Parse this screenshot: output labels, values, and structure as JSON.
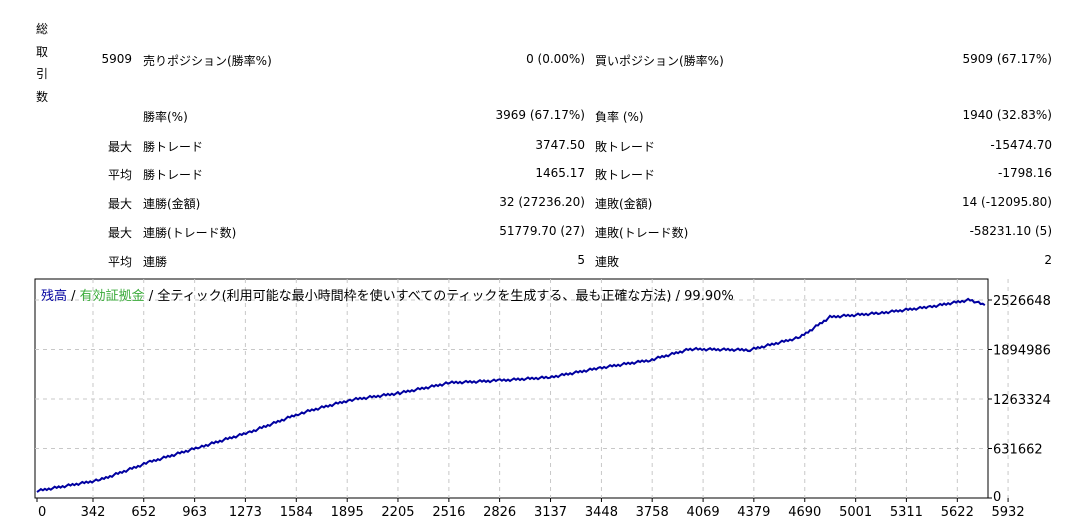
{
  "stats": {
    "total_trades_label": "総取引数",
    "rows": [
      {
        "prefix": "5909",
        "label": "売りポジション(勝率%)",
        "value": "0 (0.00%)",
        "label2": "買いポジション(勝率%)",
        "value2": "5909 (67.17%)"
      },
      {
        "prefix": "",
        "label": "勝率(%)",
        "value": "3969 (67.17%)",
        "label2": "負率 (%)",
        "value2": "1940 (32.83%)"
      },
      {
        "prefix": "最大",
        "label": "勝トレード",
        "value": "3747.50",
        "label2": "敗トレード",
        "value2": "-15474.70"
      },
      {
        "prefix": "平均",
        "label": "勝トレード",
        "value": "1465.17",
        "label2": "敗トレード",
        "value2": "-1798.16"
      },
      {
        "prefix": "最大",
        "label": "連勝(金額)",
        "value": "32 (27236.20)",
        "label2": "連敗(金額)",
        "value2": "14 (-12095.80)"
      },
      {
        "prefix": "最大",
        "label": "連勝(トレード数)",
        "value": "51779.70 (27)",
        "label2": "連敗(トレード数)",
        "value2": "-58231.10 (5)"
      },
      {
        "prefix": "平均",
        "label": "連勝",
        "value": "5",
        "label2": "連敗",
        "value2": "2"
      }
    ]
  },
  "chart_data": {
    "type": "line",
    "legend": {
      "balance": "残高",
      "sep1": " / ",
      "equity": "有効証拠金",
      "sep2": " / ",
      "model": "全ティック(利用可能な最小時間枠を使いすべてのティックを生成する、最も正確な方法)",
      "sep3": " / ",
      "quality": "99.90%"
    },
    "colors": {
      "balance": "#0000a0",
      "equity": "#3aaa3a",
      "grid": "#c8c8c8"
    },
    "x_ticks": [
      "0",
      "342",
      "652",
      "963",
      "1273",
      "1584",
      "1895",
      "2205",
      "2516",
      "2826",
      "3137",
      "3448",
      "3758",
      "4069",
      "4379",
      "4690",
      "5001",
      "5311",
      "5622",
      "5932"
    ],
    "y_ticks": [
      "2526648",
      "1894986",
      "1263324",
      "631662",
      "0"
    ],
    "ylim": [
      0,
      2526648
    ],
    "xlim": [
      0,
      5932
    ],
    "series": [
      {
        "name": "残高",
        "x": [
          0,
          385,
          690,
          995,
          1300,
          1606,
          1912,
          2217,
          2523,
          2828,
          3134,
          3440,
          3745,
          3990,
          4355,
          4661,
          4844,
          5150,
          5456,
          5700,
          5790
        ],
        "y": [
          90000,
          230000,
          460000,
          650000,
          840000,
          1080000,
          1250000,
          1340000,
          1470000,
          1500000,
          1540000,
          1660000,
          1760000,
          1900000,
          1890000,
          2050000,
          2310000,
          2360000,
          2440000,
          2530000,
          2460000
        ]
      }
    ]
  }
}
